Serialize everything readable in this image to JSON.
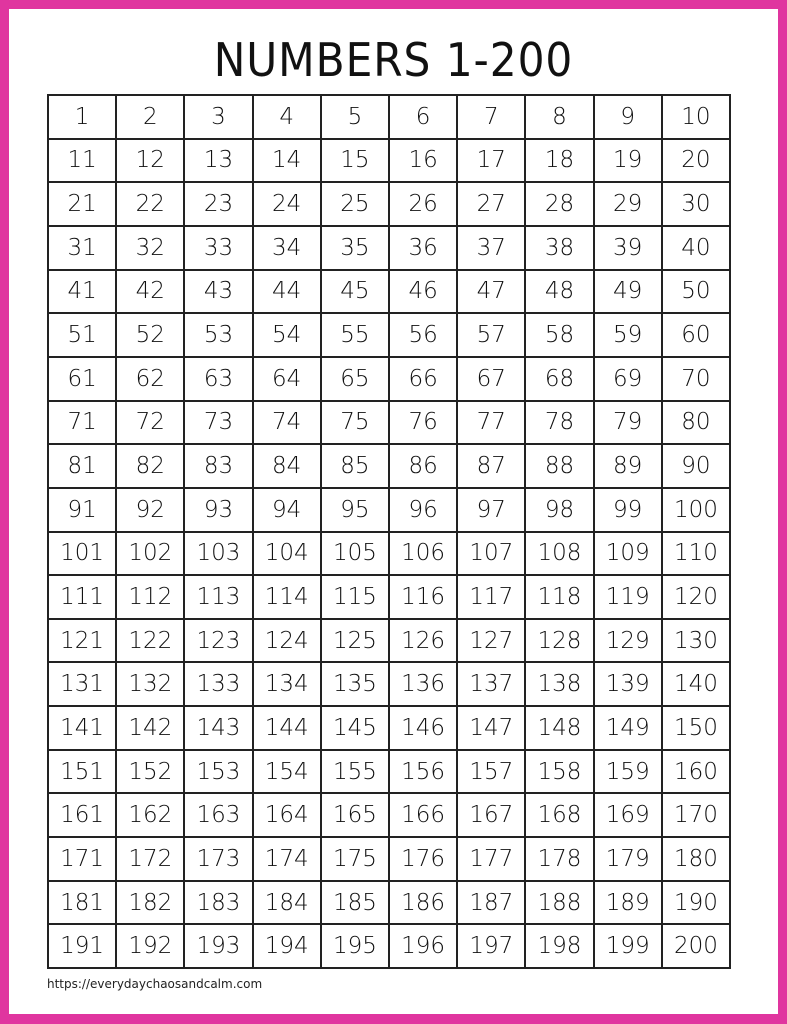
{
  "title": "NUMBERS 1-200",
  "grid": {
    "start": 1,
    "end": 200,
    "columns": 10
  },
  "footer": "https://everydaychaosandcalm.com",
  "colors": {
    "border": "#e0359f",
    "text": "#111111"
  }
}
